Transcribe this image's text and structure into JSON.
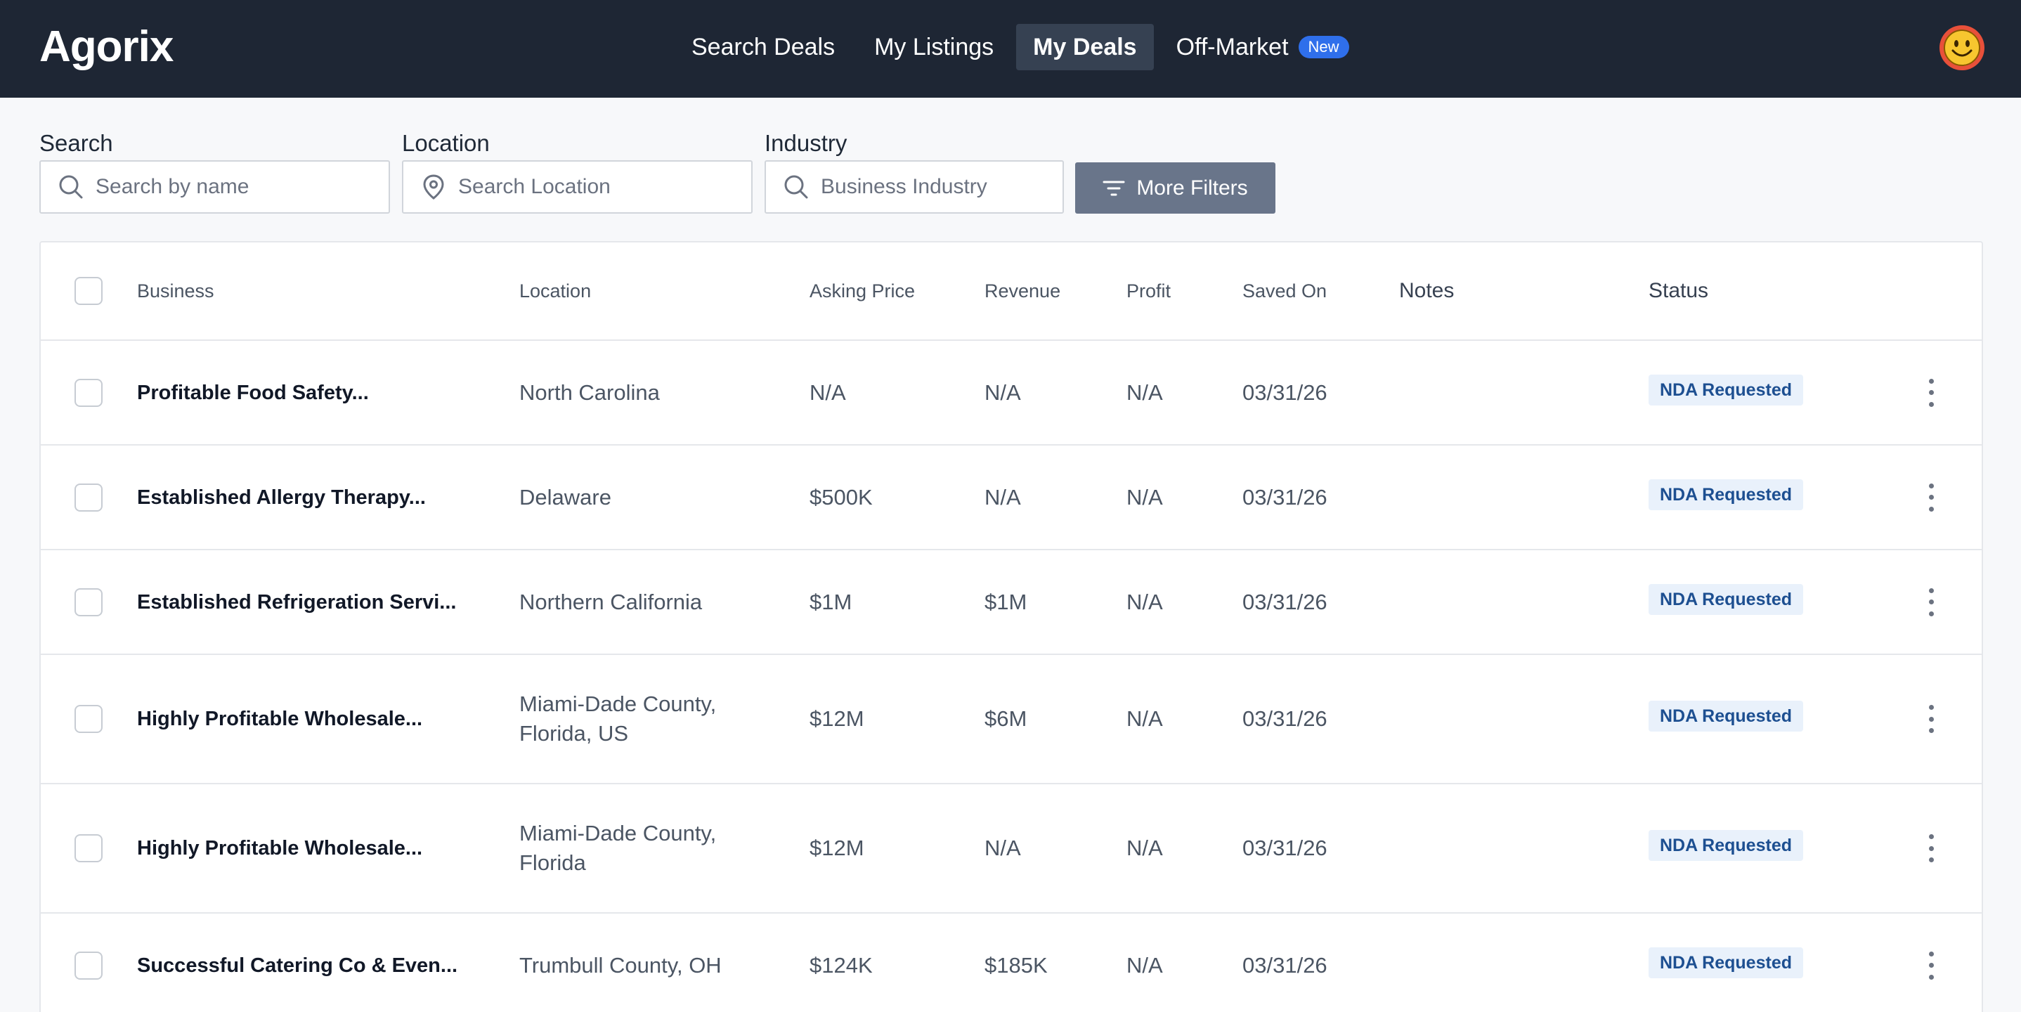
{
  "app": {
    "logo": "Agorix"
  },
  "nav": {
    "items": [
      {
        "label": "Search Deals"
      },
      {
        "label": "My Listings"
      },
      {
        "label": "My Deals"
      },
      {
        "label": "Off-Market",
        "badge": "New"
      }
    ],
    "active": "My Deals"
  },
  "user": {
    "avatar_icon": "smiley-face-icon"
  },
  "filters": {
    "search": {
      "label": "Search",
      "placeholder": "Search by name"
    },
    "location": {
      "label": "Location",
      "placeholder": "Search Location"
    },
    "industry": {
      "label": "Industry",
      "placeholder": "Business Industry"
    },
    "more_label": "More Filters"
  },
  "table": {
    "headers": {
      "business": "Business",
      "location": "Location",
      "asking_price": "Asking Price",
      "revenue": "Revenue",
      "profit": "Profit",
      "saved_on": "Saved On",
      "notes": "Notes",
      "status": "Status"
    },
    "rows": [
      {
        "business": "Profitable Food Safety...",
        "location": "North Carolina",
        "asking_price": "N/A",
        "revenue": "N/A",
        "profit": "N/A",
        "saved_on": "03/31/26",
        "notes": "",
        "status": "NDA Requested"
      },
      {
        "business": "Established Allergy Therapy...",
        "location": "Delaware",
        "asking_price": "$500K",
        "revenue": "N/A",
        "profit": "N/A",
        "saved_on": "03/31/26",
        "notes": "",
        "status": "NDA Requested"
      },
      {
        "business": "Established Refrigeration Servi...",
        "location": "Northern California",
        "asking_price": "$1M",
        "revenue": "$1M",
        "profit": "N/A",
        "saved_on": "03/31/26",
        "notes": "",
        "status": "NDA Requested"
      },
      {
        "business": "Highly Profitable Wholesale...",
        "location": "Miami-Dade County, Florida, US",
        "asking_price": "$12M",
        "revenue": "$6M",
        "profit": "N/A",
        "saved_on": "03/31/26",
        "notes": "",
        "status": "NDA Requested"
      },
      {
        "business": "Highly Profitable Wholesale...",
        "location": "Miami-Dade County, Florida",
        "asking_price": "$12M",
        "revenue": "N/A",
        "profit": "N/A",
        "saved_on": "03/31/26",
        "notes": "",
        "status": "NDA Requested"
      },
      {
        "business": "Successful Catering Co & Even...",
        "location": "Trumbull County, OH",
        "asking_price": "$124K",
        "revenue": "$185K",
        "profit": "N/A",
        "saved_on": "03/31/26",
        "notes": "",
        "status": "NDA Requested"
      }
    ]
  }
}
